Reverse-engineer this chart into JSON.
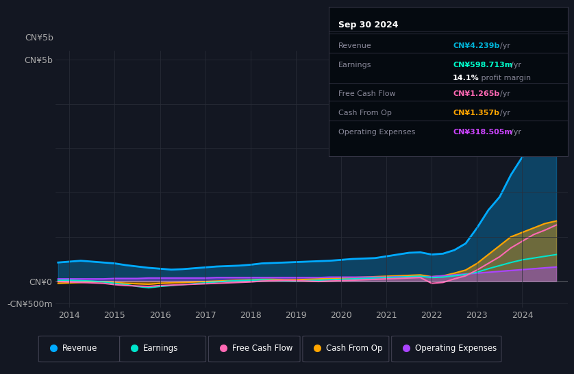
{
  "bg_color": "#131722",
  "plot_bg_color": "#131722",
  "grid_color": "#2a2e39",
  "title_box": {
    "date": "Sep 30 2024",
    "rows": [
      {
        "label": "Revenue",
        "value": "CN¥4.239b",
        "unit": "/yr",
        "color": "#00b4d8"
      },
      {
        "label": "Earnings",
        "value": "CN¥598.713m",
        "unit": "/yr",
        "color": "#00ffcc"
      },
      {
        "label": "",
        "value": "14.1%",
        "unit": " profit margin",
        "color": "#ffffff"
      },
      {
        "label": "Free Cash Flow",
        "value": "CN¥1.265b",
        "unit": "/yr",
        "color": "#ff69b4"
      },
      {
        "label": "Cash From Op",
        "value": "CN¥1.357b",
        "unit": "/yr",
        "color": "#ffa500"
      },
      {
        "label": "Operating Expenses",
        "value": "CN¥318.505m",
        "unit": "/yr",
        "color": "#cc44ff"
      }
    ]
  },
  "ylabel_top": "CN¥5b",
  "ylabel_zero": "CN¥0",
  "ylabel_neg": "-CN¥500m",
  "xlim": [
    2013.7,
    2025.0
  ],
  "ylim": [
    -0.6,
    5.2
  ],
  "xticks": [
    2014,
    2015,
    2016,
    2017,
    2018,
    2019,
    2020,
    2021,
    2022,
    2023,
    2024
  ],
  "series": {
    "Revenue": {
      "color": "#00aaff",
      "fill_alpha": 0.3,
      "linewidth": 2.0
    },
    "Earnings": {
      "color": "#00e5cc",
      "linewidth": 1.5
    },
    "FreeCashFlow": {
      "color": "#ff69b4",
      "linewidth": 1.5
    },
    "CashFromOp": {
      "color": "#ffa500",
      "fill_alpha": 0.4,
      "linewidth": 1.5
    },
    "OperatingExpenses": {
      "color": "#aa44ff",
      "fill_alpha": 0.4,
      "linewidth": 1.5
    }
  },
  "legend": [
    {
      "label": "Revenue",
      "color": "#00aaff"
    },
    {
      "label": "Earnings",
      "color": "#00e5cc"
    },
    {
      "label": "Free Cash Flow",
      "color": "#ff69b4"
    },
    {
      "label": "Cash From Op",
      "color": "#ffa500"
    },
    {
      "label": "Operating Expenses",
      "color": "#aa44ff"
    }
  ],
  "data": {
    "x": [
      2013.75,
      2014.0,
      2014.25,
      2014.5,
      2014.75,
      2015.0,
      2015.25,
      2015.5,
      2015.75,
      2016.0,
      2016.25,
      2016.5,
      2016.75,
      2017.0,
      2017.25,
      2017.5,
      2017.75,
      2018.0,
      2018.25,
      2018.5,
      2018.75,
      2019.0,
      2019.25,
      2019.5,
      2019.75,
      2020.0,
      2020.25,
      2020.5,
      2020.75,
      2021.0,
      2021.25,
      2021.5,
      2021.75,
      2022.0,
      2022.25,
      2022.5,
      2022.75,
      2023.0,
      2023.25,
      2023.5,
      2023.75,
      2024.0,
      2024.25,
      2024.5,
      2024.75
    ],
    "Revenue": [
      0.42,
      0.44,
      0.46,
      0.44,
      0.42,
      0.4,
      0.36,
      0.33,
      0.3,
      0.28,
      0.26,
      0.27,
      0.29,
      0.31,
      0.33,
      0.34,
      0.35,
      0.37,
      0.4,
      0.41,
      0.42,
      0.43,
      0.44,
      0.45,
      0.46,
      0.48,
      0.5,
      0.51,
      0.52,
      0.56,
      0.6,
      0.64,
      0.65,
      0.6,
      0.62,
      0.7,
      0.85,
      1.2,
      1.6,
      1.9,
      2.4,
      2.8,
      3.2,
      3.8,
      4.239
    ],
    "Earnings": [
      0.02,
      0.02,
      0.01,
      0.0,
      -0.02,
      -0.05,
      -0.08,
      -0.12,
      -0.15,
      -0.12,
      -0.1,
      -0.08,
      -0.06,
      -0.04,
      -0.02,
      0.0,
      0.01,
      0.02,
      0.03,
      0.02,
      0.01,
      0.0,
      0.01,
      0.02,
      0.03,
      0.04,
      0.05,
      0.06,
      0.07,
      0.08,
      0.09,
      0.1,
      0.11,
      0.08,
      0.09,
      0.12,
      0.15,
      0.2,
      0.28,
      0.35,
      0.42,
      0.48,
      0.52,
      0.56,
      0.5987
    ],
    "FreeCashFlow": [
      -0.01,
      -0.02,
      -0.03,
      -0.04,
      -0.05,
      -0.08,
      -0.1,
      -0.11,
      -0.12,
      -0.1,
      -0.09,
      -0.08,
      -0.07,
      -0.06,
      -0.05,
      -0.04,
      -0.03,
      -0.02,
      0.0,
      0.01,
      0.02,
      0.01,
      0.0,
      -0.01,
      0.0,
      0.01,
      0.02,
      0.03,
      0.04,
      0.05,
      0.06,
      0.07,
      0.08,
      -0.05,
      -0.03,
      0.05,
      0.12,
      0.25,
      0.4,
      0.55,
      0.75,
      0.9,
      1.05,
      1.15,
      1.265
    ],
    "CashFromOp": [
      -0.05,
      -0.04,
      -0.03,
      -0.02,
      -0.01,
      -0.03,
      -0.05,
      -0.06,
      -0.07,
      -0.05,
      -0.04,
      -0.03,
      -0.02,
      -0.01,
      0.0,
      0.01,
      0.02,
      0.03,
      0.04,
      0.04,
      0.03,
      0.03,
      0.04,
      0.05,
      0.06,
      0.07,
      0.08,
      0.09,
      0.1,
      0.11,
      0.12,
      0.13,
      0.14,
      0.1,
      0.12,
      0.18,
      0.25,
      0.4,
      0.6,
      0.8,
      1.0,
      1.1,
      1.2,
      1.3,
      1.357
    ],
    "OperatingExpenses": [
      0.05,
      0.05,
      0.05,
      0.05,
      0.05,
      0.06,
      0.06,
      0.06,
      0.07,
      0.07,
      0.07,
      0.07,
      0.07,
      0.07,
      0.08,
      0.08,
      0.08,
      0.08,
      0.08,
      0.08,
      0.08,
      0.08,
      0.08,
      0.08,
      0.09,
      0.09,
      0.09,
      0.09,
      0.09,
      0.09,
      0.1,
      0.1,
      0.1,
      0.1,
      0.12,
      0.14,
      0.16,
      0.18,
      0.2,
      0.22,
      0.24,
      0.26,
      0.28,
      0.3,
      0.3185
    ]
  }
}
